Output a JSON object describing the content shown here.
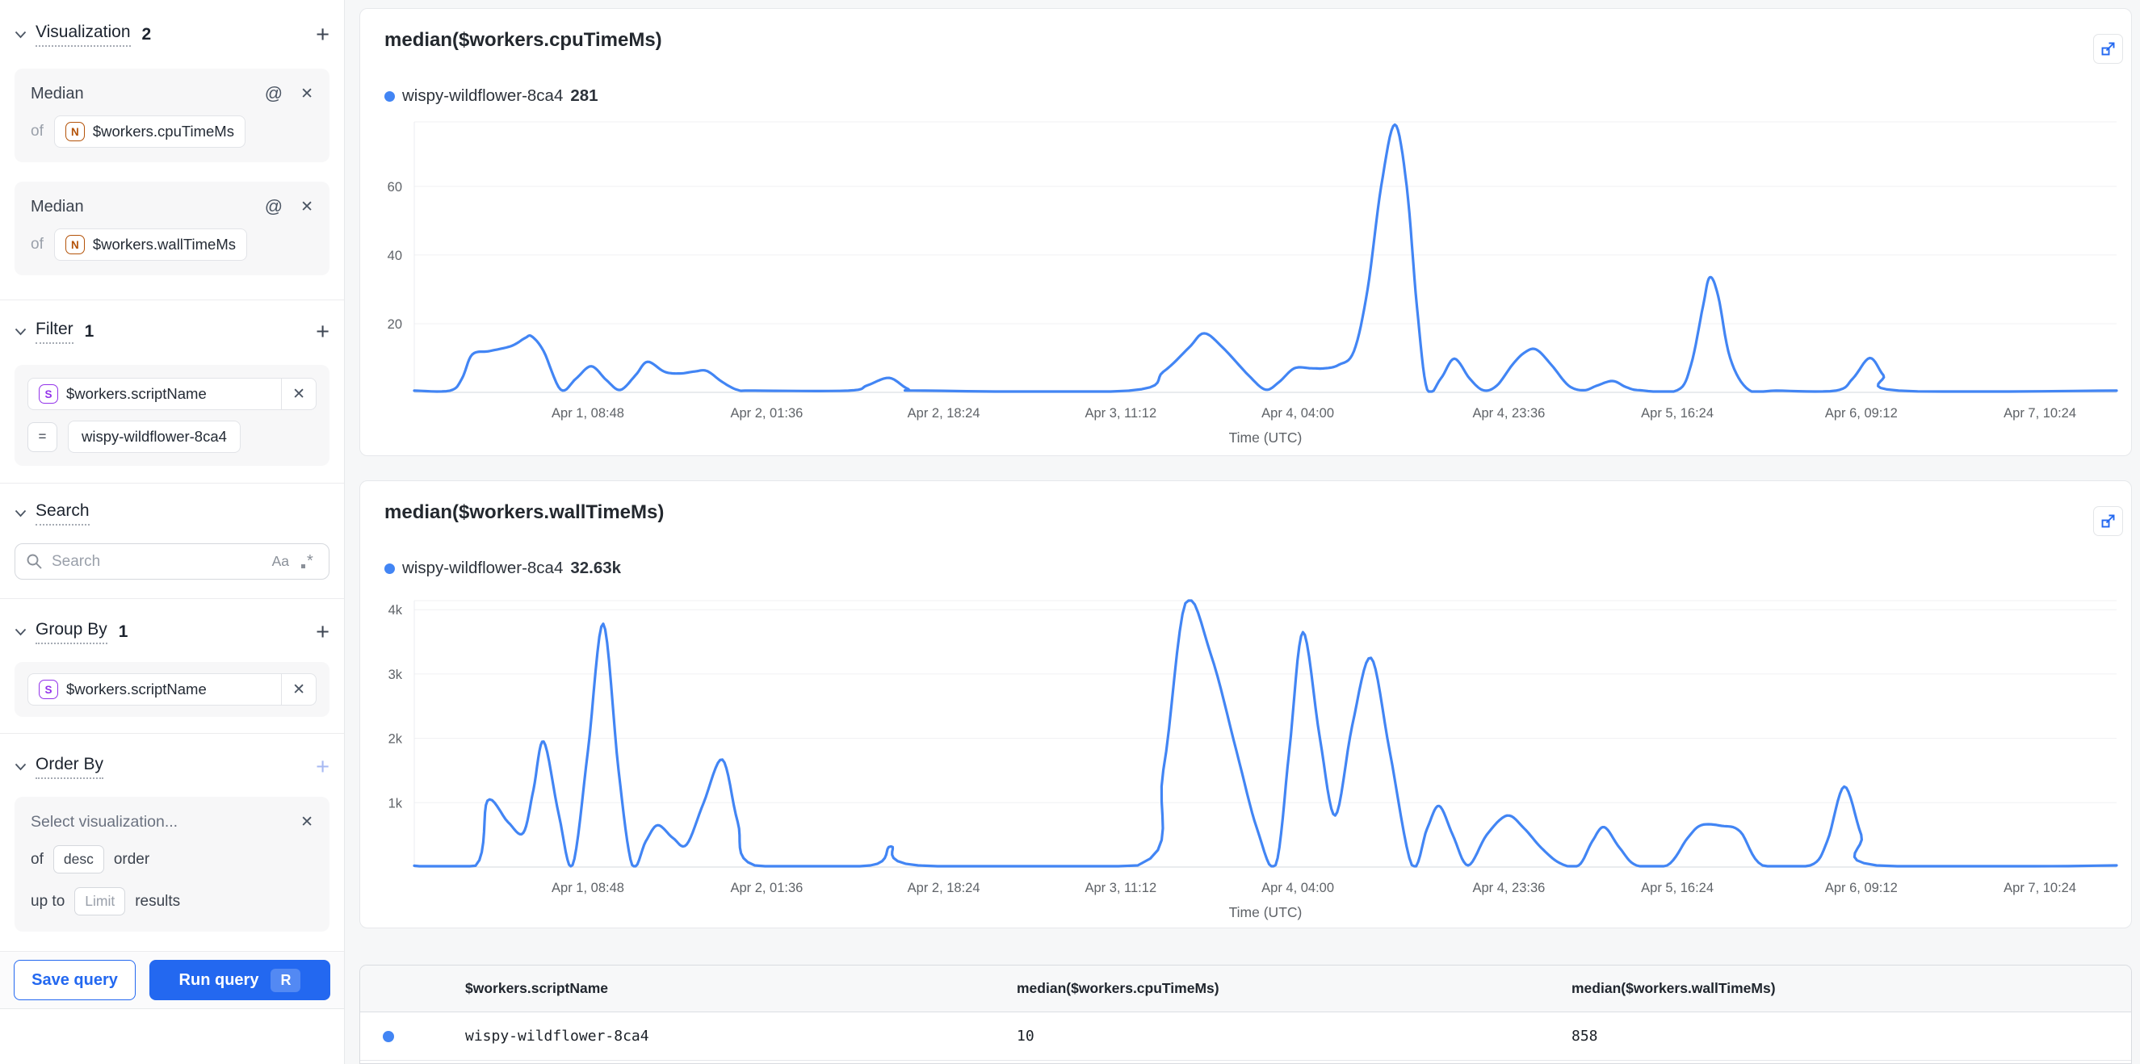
{
  "colors": {
    "accent": "#2368f0",
    "chart_line": "#4285f4",
    "legend_dot": "#4285f4",
    "badge_number": "#b45309",
    "badge_string": "#9333ea"
  },
  "sidebar": {
    "visualization": {
      "title": "Visualization",
      "count": "2",
      "add": "+",
      "cards": [
        {
          "label": "Median",
          "of": "of",
          "badge": "N",
          "field": "$workers.cpuTimeMs"
        },
        {
          "label": "Median",
          "of": "of",
          "badge": "N",
          "field": "$workers.wallTimeMs"
        }
      ]
    },
    "filter": {
      "title": "Filter",
      "count": "1",
      "add": "+",
      "badge": "S",
      "field": "$workers.scriptName",
      "operator": "=",
      "value": "wispy-wildflower-8ca4"
    },
    "search": {
      "title": "Search",
      "placeholder": "Search",
      "match_case": "Aa"
    },
    "group_by": {
      "title": "Group By",
      "count": "1",
      "add": "+",
      "badge": "S",
      "field": "$workers.scriptName"
    },
    "order_by": {
      "title": "Order By",
      "add": "+",
      "placeholder": "Select visualization...",
      "of": "of",
      "order_value": "desc",
      "order_label": "order",
      "upto": "up to",
      "limit_placeholder": "Limit",
      "results": "results"
    },
    "actions": {
      "save": "Save query",
      "run": "Run query",
      "run_shortcut": "R"
    }
  },
  "chart_data": [
    {
      "type": "line",
      "title": "median($workers.cpuTimeMs)",
      "legend": {
        "series": "wispy-wildflower-8ca4",
        "value": "281"
      },
      "xlabel": "Time (UTC)",
      "ylim": [
        0,
        78.8
      ],
      "grid": true,
      "y_ticks": [
        {
          "v": 20,
          "label": "20"
        },
        {
          "v": 40,
          "label": "40"
        },
        {
          "v": 60,
          "label": "60"
        }
      ],
      "x_ticks": [
        {
          "pos": 0.102,
          "label": "Apr 1, 08:48"
        },
        {
          "pos": 0.207,
          "label": "Apr 2, 01:36"
        },
        {
          "pos": 0.311,
          "label": "Apr 2, 18:24"
        },
        {
          "pos": 0.415,
          "label": "Apr 3, 11:12"
        },
        {
          "pos": 0.519,
          "label": "Apr 4, 04:00"
        },
        {
          "pos": 0.643,
          "label": "Apr 4, 23:36"
        },
        {
          "pos": 0.742,
          "label": "Apr 5, 16:24"
        },
        {
          "pos": 0.85,
          "label": "Apr 6, 09:12"
        },
        {
          "pos": 0.955,
          "label": "Apr 7, 10:24"
        }
      ],
      "points": [
        [
          0.0,
          0.5
        ],
        [
          0.021,
          0.5
        ],
        [
          0.028,
          4
        ],
        [
          0.034,
          11
        ],
        [
          0.044,
          12
        ],
        [
          0.057,
          13.5
        ],
        [
          0.065,
          15.8
        ],
        [
          0.069,
          16.3
        ],
        [
          0.076,
          12
        ],
        [
          0.086,
          0.8
        ],
        [
          0.095,
          4
        ],
        [
          0.104,
          7.6
        ],
        [
          0.113,
          3.5
        ],
        [
          0.121,
          0.7
        ],
        [
          0.13,
          5
        ],
        [
          0.137,
          8.9
        ],
        [
          0.147,
          6
        ],
        [
          0.156,
          5.5
        ],
        [
          0.165,
          6.1
        ],
        [
          0.172,
          6.2
        ],
        [
          0.181,
          3
        ],
        [
          0.19,
          0.7
        ],
        [
          0.2,
          0.5
        ],
        [
          0.255,
          0.5
        ],
        [
          0.266,
          2
        ],
        [
          0.279,
          4.2
        ],
        [
          0.29,
          1
        ],
        [
          0.3,
          0.5
        ],
        [
          0.42,
          0.5
        ],
        [
          0.44,
          6
        ],
        [
          0.455,
          13
        ],
        [
          0.464,
          17.2
        ],
        [
          0.475,
          13
        ],
        [
          0.49,
          5
        ],
        [
          0.5,
          0.8
        ],
        [
          0.508,
          3
        ],
        [
          0.517,
          7
        ],
        [
          0.527,
          7
        ],
        [
          0.535,
          7
        ],
        [
          0.543,
          8
        ],
        [
          0.552,
          12
        ],
        [
          0.56,
          30
        ],
        [
          0.568,
          60
        ],
        [
          0.576,
          78
        ],
        [
          0.583,
          60
        ],
        [
          0.589,
          25
        ],
        [
          0.595,
          0.8
        ],
        [
          0.603,
          4
        ],
        [
          0.611,
          9.8
        ],
        [
          0.62,
          4
        ],
        [
          0.628,
          0.6
        ],
        [
          0.636,
          2
        ],
        [
          0.645,
          8
        ],
        [
          0.652,
          11.5
        ],
        [
          0.659,
          12.5
        ],
        [
          0.668,
          8
        ],
        [
          0.678,
          2
        ],
        [
          0.687,
          0.6
        ],
        [
          0.695,
          2
        ],
        [
          0.704,
          3.3
        ],
        [
          0.712,
          1.5
        ],
        [
          0.72,
          0.6
        ],
        [
          0.742,
          0.6
        ],
        [
          0.75,
          8
        ],
        [
          0.757,
          25
        ],
        [
          0.761,
          33.5
        ],
        [
          0.766,
          28
        ],
        [
          0.773,
          10
        ],
        [
          0.784,
          0.7
        ],
        [
          0.8,
          0.5
        ],
        [
          0.835,
          0.5
        ],
        [
          0.845,
          4
        ],
        [
          0.855,
          10
        ],
        [
          0.863,
          5
        ],
        [
          0.872,
          0.5
        ],
        [
          1.0,
          0.5
        ]
      ]
    },
    {
      "type": "line",
      "title": "median($workers.wallTimeMs)",
      "legend": {
        "series": "wispy-wildflower-8ca4",
        "value": "32.63k"
      },
      "xlabel": "Time (UTC)",
      "ylim": [
        0,
        4140
      ],
      "grid": true,
      "y_ticks": [
        {
          "v": 1000,
          "label": "1k"
        },
        {
          "v": 2000,
          "label": "2k"
        },
        {
          "v": 3000,
          "label": "3k"
        },
        {
          "v": 4000,
          "label": "4k"
        }
      ],
      "x_ticks": [
        {
          "pos": 0.102,
          "label": "Apr 1, 08:48"
        },
        {
          "pos": 0.207,
          "label": "Apr 2, 01:36"
        },
        {
          "pos": 0.311,
          "label": "Apr 2, 18:24"
        },
        {
          "pos": 0.415,
          "label": "Apr 3, 11:12"
        },
        {
          "pos": 0.519,
          "label": "Apr 4, 04:00"
        },
        {
          "pos": 0.643,
          "label": "Apr 4, 23:36"
        },
        {
          "pos": 0.742,
          "label": "Apr 5, 16:24"
        },
        {
          "pos": 0.85,
          "label": "Apr 6, 09:12"
        },
        {
          "pos": 0.955,
          "label": "Apr 7, 10:24"
        }
      ],
      "points": [
        [
          0.0,
          20
        ],
        [
          0.036,
          20
        ],
        [
          0.043,
          1030
        ],
        [
          0.055,
          700
        ],
        [
          0.064,
          530
        ],
        [
          0.07,
          1200
        ],
        [
          0.076,
          1950
        ],
        [
          0.085,
          800
        ],
        [
          0.093,
          30
        ],
        [
          0.102,
          1800
        ],
        [
          0.111,
          3780
        ],
        [
          0.12,
          1500
        ],
        [
          0.128,
          30
        ],
        [
          0.136,
          400
        ],
        [
          0.143,
          650
        ],
        [
          0.152,
          450
        ],
        [
          0.16,
          350
        ],
        [
          0.17,
          1000
        ],
        [
          0.181,
          1670
        ],
        [
          0.19,
          700
        ],
        [
          0.2,
          25
        ],
        [
          0.268,
          25
        ],
        [
          0.28,
          320
        ],
        [
          0.296,
          25
        ],
        [
          0.425,
          25
        ],
        [
          0.44,
          1500
        ],
        [
          0.453,
          4100
        ],
        [
          0.468,
          3300
        ],
        [
          0.483,
          1800
        ],
        [
          0.495,
          600
        ],
        [
          0.506,
          30
        ],
        [
          0.514,
          1800
        ],
        [
          0.522,
          3650
        ],
        [
          0.532,
          2000
        ],
        [
          0.541,
          800
        ],
        [
          0.551,
          2200
        ],
        [
          0.562,
          3250
        ],
        [
          0.573,
          1800
        ],
        [
          0.586,
          30
        ],
        [
          0.595,
          600
        ],
        [
          0.602,
          950
        ],
        [
          0.61,
          500
        ],
        [
          0.619,
          25
        ],
        [
          0.63,
          500
        ],
        [
          0.642,
          800
        ],
        [
          0.652,
          600
        ],
        [
          0.662,
          300
        ],
        [
          0.673,
          60
        ],
        [
          0.684,
          25
        ],
        [
          0.692,
          400
        ],
        [
          0.699,
          620
        ],
        [
          0.708,
          300
        ],
        [
          0.718,
          25
        ],
        [
          0.736,
          25
        ],
        [
          0.748,
          450
        ],
        [
          0.756,
          650
        ],
        [
          0.768,
          640
        ],
        [
          0.779,
          550
        ],
        [
          0.792,
          25
        ],
        [
          0.82,
          25
        ],
        [
          0.83,
          400
        ],
        [
          0.84,
          1250
        ],
        [
          0.85,
          500
        ],
        [
          0.859,
          25
        ],
        [
          1.0,
          25
        ]
      ]
    }
  ],
  "table": {
    "columns": [
      "$workers.scriptName",
      "median($workers.cpuTimeMs)",
      "median($workers.wallTimeMs)"
    ],
    "rows": [
      {
        "dot_color": "#4285f4",
        "cells": [
          "wispy-wildflower-8ca4",
          "10",
          "858"
        ]
      }
    ]
  }
}
